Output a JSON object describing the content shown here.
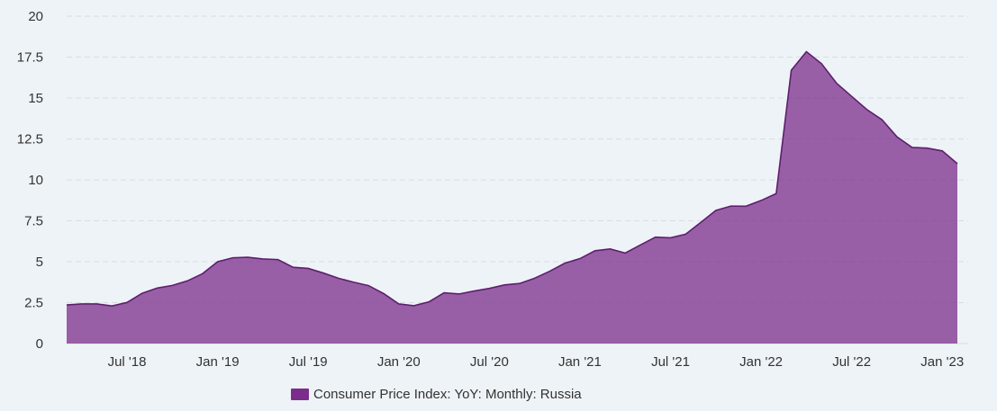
{
  "chart_data": {
    "type": "area",
    "series": [
      {
        "name": "Consumer Price Index: YoY: Monthly: Russia",
        "color": "#7b2d8b",
        "x": [
          "2018-03",
          "2018-04",
          "2018-05",
          "2018-06",
          "2018-07",
          "2018-08",
          "2018-09",
          "2018-10",
          "2018-11",
          "2018-12",
          "2019-01",
          "2019-02",
          "2019-03",
          "2019-04",
          "2019-05",
          "2019-06",
          "2019-07",
          "2019-08",
          "2019-09",
          "2019-10",
          "2019-11",
          "2019-12",
          "2020-01",
          "2020-02",
          "2020-03",
          "2020-04",
          "2020-05",
          "2020-06",
          "2020-07",
          "2020-08",
          "2020-09",
          "2020-10",
          "2020-11",
          "2020-12",
          "2021-01",
          "2021-02",
          "2021-03",
          "2021-04",
          "2021-05",
          "2021-06",
          "2021-07",
          "2021-08",
          "2021-09",
          "2021-10",
          "2021-11",
          "2021-12",
          "2022-01",
          "2022-02",
          "2022-03",
          "2022-04",
          "2022-05",
          "2022-06",
          "2022-07",
          "2022-08",
          "2022-09",
          "2022-10",
          "2022-11",
          "2022-12",
          "2023-01",
          "2023-02"
        ],
        "values": [
          2.36,
          2.42,
          2.42,
          2.3,
          2.51,
          3.07,
          3.39,
          3.55,
          3.83,
          4.27,
          5.0,
          5.24,
          5.27,
          5.17,
          5.13,
          4.66,
          4.59,
          4.31,
          3.99,
          3.75,
          3.54,
          3.05,
          2.42,
          2.31,
          2.55,
          3.1,
          3.03,
          3.21,
          3.37,
          3.58,
          3.67,
          3.99,
          4.42,
          4.91,
          5.19,
          5.67,
          5.78,
          5.53,
          6.02,
          6.5,
          6.46,
          6.68,
          7.4,
          8.13,
          8.4,
          8.39,
          8.74,
          9.16,
          16.7,
          17.83,
          17.1,
          15.9,
          15.1,
          14.3,
          13.68,
          12.63,
          11.98,
          11.94,
          11.77,
          10.99
        ]
      }
    ],
    "x_ticks": [
      {
        "x": "2018-07",
        "label": "Jul '18"
      },
      {
        "x": "2019-01",
        "label": "Jan '19"
      },
      {
        "x": "2019-07",
        "label": "Jul '19"
      },
      {
        "x": "2020-01",
        "label": "Jan '20"
      },
      {
        "x": "2020-07",
        "label": "Jul '20"
      },
      {
        "x": "2021-01",
        "label": "Jan '21"
      },
      {
        "x": "2021-07",
        "label": "Jul '21"
      },
      {
        "x": "2022-01",
        "label": "Jan '22"
      },
      {
        "x": "2022-07",
        "label": "Jul '22"
      },
      {
        "x": "2023-01",
        "label": "Jan '23"
      }
    ],
    "y_ticks": [
      0,
      2.5,
      5,
      7.5,
      10,
      12.5,
      15,
      17.5,
      20
    ],
    "y_tick_labels": [
      "0",
      "2.5",
      "5",
      "7.5",
      "10",
      "12.5",
      "15",
      "17.5",
      "20"
    ],
    "ylim": [
      0,
      20
    ],
    "grid": true,
    "legend_position": "bottom",
    "title": "",
    "xlabel": "",
    "ylabel": ""
  },
  "colors": {
    "background": "#eef3f7",
    "area_fill": "#7b2d8b",
    "area_line": "#5e1f6d",
    "grid": "#d8dde2",
    "axis_text": "#333333"
  }
}
